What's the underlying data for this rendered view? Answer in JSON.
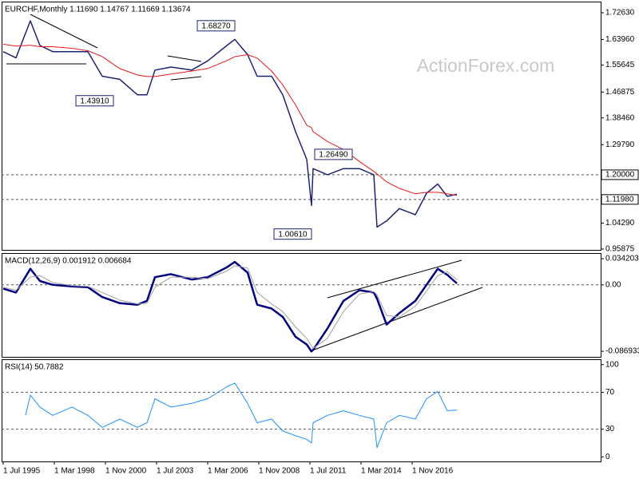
{
  "chart_data": [
    {
      "type": "line",
      "title": "EURCHF,Monthly 1.11690 1.14767 1.11669 1.13674",
      "watermark": "ActionForex.com",
      "xlim": [
        "1995-07",
        "2026-09"
      ],
      "x": [
        "1995-07",
        "1996-03",
        "1996-12",
        "1997-06",
        "1998-02",
        "1999-02",
        "1999-12",
        "2000-09",
        "2001-08",
        "2002-07",
        "2003-01",
        "2003-06",
        "2004-04",
        "2005-05",
        "2006-03",
        "2007-03",
        "2007-08",
        "2008-04",
        "2008-10",
        "2009-07",
        "2010-02",
        "2010-10",
        "2011-05",
        "2011-08",
        "2011-09",
        "2012-06",
        "2013-04",
        "2014-02",
        "2014-11",
        "2015-01",
        "2015-07",
        "2016-03",
        "2017-01",
        "2017-08",
        "2018-03",
        "2018-09",
        "2019-03"
      ],
      "series": [
        {
          "color": "#1c2470",
          "values": [
            1.6,
            1.58,
            1.7,
            1.62,
            1.6,
            1.6,
            1.6,
            1.52,
            1.51,
            1.46,
            1.46,
            1.54,
            1.55,
            1.54,
            1.57,
            1.62,
            1.64,
            1.59,
            1.52,
            1.52,
            1.46,
            1.34,
            1.25,
            1.1,
            1.22,
            1.2,
            1.22,
            1.22,
            1.2,
            1.03,
            1.05,
            1.09,
            1.07,
            1.14,
            1.17,
            1.13,
            1.13674
          ]
        },
        {
          "color": "#e31a1c",
          "values": [
            1.624,
            1.618,
            1.621,
            1.616,
            1.616,
            1.611,
            1.603,
            1.584,
            1.545,
            1.524,
            1.519,
            1.519,
            1.527,
            1.537,
            1.545,
            1.571,
            1.584,
            1.59,
            1.579,
            1.537,
            1.492,
            1.427,
            1.361,
            1.353,
            1.34,
            1.308,
            1.282,
            1.243,
            1.211,
            1.203,
            1.177,
            1.156,
            1.138,
            1.143,
            1.143,
            1.138,
            1.133
          ]
        }
      ],
      "ylim": [
        0.956,
        1.76
      ],
      "yticks": [
        {
          "value": 1.7263,
          "label": "1.72630"
        },
        {
          "value": 1.6396,
          "label": "1.63960"
        },
        {
          "value": 1.55645,
          "label": "1.55645"
        },
        {
          "value": 1.46875,
          "label": "1.46875"
        },
        {
          "value": 1.3846,
          "label": "1.38460"
        },
        {
          "value": 1.2979,
          "label": "1.29790"
        },
        {
          "value": 1.0429,
          "label": "1.04290"
        },
        {
          "value": 0.95875,
          "label": "0.95875"
        }
      ],
      "levels": [
        {
          "value": 1.2,
          "label": "1.20000"
        },
        {
          "value": 1.1198,
          "label": "1.11980"
        }
      ],
      "annotations": [
        {
          "x": "2007-08",
          "value": 1.6827,
          "label": "1.68270",
          "anchor": "right"
        },
        {
          "x": "2001-04",
          "value": 1.4391,
          "label": "1.43910",
          "anchor": "right"
        },
        {
          "x": "2011-10",
          "value": 1.2649,
          "label": "1.26490",
          "anchor": "left"
        },
        {
          "x": "2011-08",
          "value": 1.0061,
          "label": "1.00610",
          "anchor": "right"
        }
      ]
    },
    {
      "type": "line",
      "title": "MACD(12,26,9) 0.001912 0.006684",
      "xlim": [
        "1995-07",
        "2026-09"
      ],
      "x": [
        "1995-07",
        "1996-03",
        "1996-12",
        "1997-06",
        "1998-02",
        "1999-02",
        "1999-12",
        "2000-09",
        "2001-08",
        "2002-07",
        "2003-01",
        "2003-06",
        "2004-04",
        "2005-05",
        "2006-03",
        "2007-03",
        "2007-08",
        "2008-04",
        "2008-10",
        "2009-07",
        "2010-02",
        "2010-10",
        "2011-05",
        "2011-08",
        "2011-09",
        "2012-06",
        "2013-04",
        "2014-02",
        "2014-11",
        "2015-01",
        "2015-07",
        "2016-03",
        "2017-01",
        "2017-08",
        "2018-03",
        "2018-09",
        "2019-03"
      ],
      "series": [
        {
          "color": "#000080",
          "values": [
            -0.005,
            -0.01,
            0.021,
            0.005,
            0.0,
            -0.002,
            -0.003,
            -0.016,
            -0.024,
            -0.026,
            -0.021,
            0.01,
            0.014,
            0.007,
            0.01,
            0.023,
            0.03,
            0.016,
            -0.026,
            -0.031,
            -0.042,
            -0.068,
            -0.078,
            -0.087,
            -0.085,
            -0.057,
            -0.021,
            -0.007,
            -0.01,
            -0.018,
            -0.052,
            -0.037,
            -0.021,
            0.0,
            0.021,
            0.013,
            0.001912
          ]
        },
        {
          "color": "#a0a0a0",
          "values": [
            -0.003,
            -0.007,
            0.01,
            0.012,
            0.003,
            -0.001,
            -0.002,
            -0.01,
            -0.02,
            -0.025,
            -0.024,
            -0.003,
            0.01,
            0.01,
            0.008,
            0.018,
            0.025,
            0.022,
            -0.01,
            -0.025,
            -0.035,
            -0.055,
            -0.07,
            -0.08,
            -0.083,
            -0.07,
            -0.035,
            -0.012,
            -0.009,
            -0.013,
            -0.04,
            -0.042,
            -0.028,
            -0.008,
            0.012,
            0.017,
            0.006684
          ]
        }
      ],
      "ylim": [
        -0.0942,
        0.0405
      ],
      "yticks": [
        0.034203,
        {
          "value": 0,
          "label": "0.00"
        },
        -0.086933
      ],
      "levels": [
        0
      ]
    },
    {
      "type": "line",
      "title": "RSI(14) 50.7882",
      "xlim": [
        "1995-07",
        "2026-09"
      ],
      "x": [
        "1996-09",
        "1996-12",
        "1997-06",
        "1998-02",
        "1999-02",
        "1999-12",
        "2000-09",
        "2001-08",
        "2002-07",
        "2003-01",
        "2003-06",
        "2004-04",
        "2005-05",
        "2006-03",
        "2007-03",
        "2007-08",
        "2008-04",
        "2008-10",
        "2009-07",
        "2010-02",
        "2010-10",
        "2011-05",
        "2011-08",
        "2011-09",
        "2012-06",
        "2013-04",
        "2014-02",
        "2014-11",
        "2015-01",
        "2015-07",
        "2016-03",
        "2017-01",
        "2017-08",
        "2018-03",
        "2018-09",
        "2019-03"
      ],
      "series": [
        {
          "color": "#1e90ff",
          "values": [
            45,
            67,
            54,
            45,
            54,
            45,
            32,
            41,
            32,
            37,
            63,
            54,
            58,
            63,
            76,
            80,
            58,
            37,
            41,
            28,
            23,
            19,
            15,
            37,
            45,
            50,
            45,
            41,
            10,
            37,
            45,
            41,
            63,
            71,
            50,
            50.7882
          ]
        }
      ],
      "ylim": [
        -5,
        105
      ],
      "yticks": [
        0,
        30,
        70,
        100
      ],
      "levels": [
        30,
        70
      ],
      "xticks": [
        {
          "value": "1995-07",
          "label": "1 Jul 1995"
        },
        {
          "value": "1998-03",
          "label": "1 Mar 1998"
        },
        {
          "value": "2000-11",
          "label": "1 Nov 2000"
        },
        {
          "value": "2003-07",
          "label": "1 Jul 2003"
        },
        {
          "value": "2006-03",
          "label": "1 Mar 2006"
        },
        {
          "value": "2008-11",
          "label": "1 Nov 2008"
        },
        {
          "value": "2011-07",
          "label": "1 Jul 2011"
        },
        {
          "value": "2014-03",
          "label": "1 Mar 2014"
        },
        {
          "value": "2016-11",
          "label": "1 Nov 2016"
        }
      ]
    }
  ]
}
